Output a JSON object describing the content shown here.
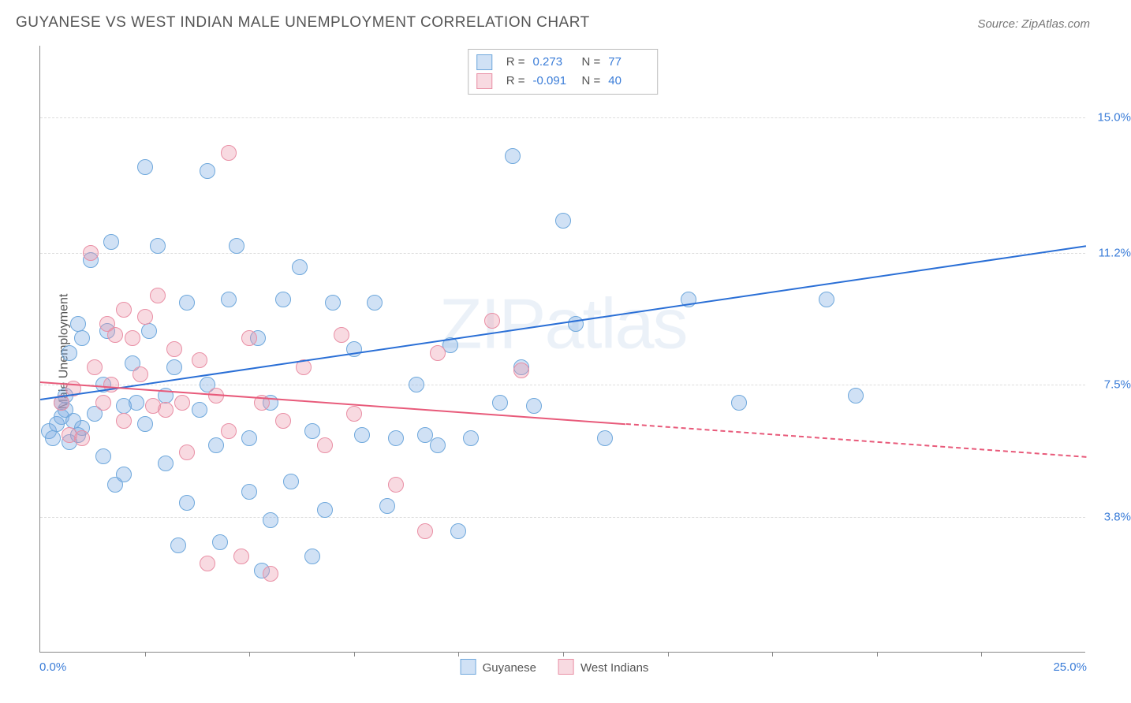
{
  "title": "GUYANESE VS WEST INDIAN MALE UNEMPLOYMENT CORRELATION CHART",
  "source": "Source: ZipAtlas.com",
  "ylabel": "Male Unemployment",
  "watermark_a": "ZIP",
  "watermark_b": "atlas",
  "chart": {
    "type": "scatter-with-regression",
    "background_color": "#ffffff",
    "grid_color": "#dddddd",
    "axis_color": "#888888",
    "xlim": [
      0,
      25
    ],
    "ylim": [
      0,
      17
    ],
    "x_min_label": "0.0%",
    "x_max_label": "25.0%",
    "x_ticks_pct": [
      10,
      20,
      30,
      40,
      50,
      60,
      70,
      80,
      90
    ],
    "y_gridlines": [
      {
        "val": 3.8,
        "label": "3.8%"
      },
      {
        "val": 7.5,
        "label": "7.5%"
      },
      {
        "val": 11.2,
        "label": "11.2%"
      },
      {
        "val": 15.0,
        "label": "15.0%"
      }
    ],
    "label_color": "#3b7dd8",
    "label_fontsize": 15,
    "title_fontsize": 19,
    "marker_radius": 10,
    "marker_border_width": 1.5,
    "series": [
      {
        "name": "Guyanese",
        "fill": "rgba(120, 170, 225, 0.35)",
        "stroke": "#6fa8dc",
        "line_color": "#2a6fd6",
        "R_label": "R =",
        "R": "0.273",
        "N_label": "N =",
        "N": "77",
        "reg_x1": 0,
        "reg_y1": 7.1,
        "reg_x2": 25,
        "reg_y2": 11.4,
        "reg_dashed_from_x": null,
        "points": [
          [
            0.2,
            6.2
          ],
          [
            0.3,
            6.0
          ],
          [
            0.4,
            6.4
          ],
          [
            0.5,
            7.0
          ],
          [
            0.5,
            6.6
          ],
          [
            0.6,
            6.8
          ],
          [
            0.6,
            7.2
          ],
          [
            0.7,
            5.9
          ],
          [
            0.7,
            8.4
          ],
          [
            0.8,
            6.5
          ],
          [
            0.9,
            6.1
          ],
          [
            0.9,
            9.2
          ],
          [
            1.0,
            6.3
          ],
          [
            1.0,
            8.8
          ],
          [
            1.2,
            11.0
          ],
          [
            1.3,
            6.7
          ],
          [
            1.5,
            5.5
          ],
          [
            1.5,
            7.5
          ],
          [
            1.6,
            9.0
          ],
          [
            1.7,
            11.5
          ],
          [
            2.0,
            5.0
          ],
          [
            2.0,
            6.9
          ],
          [
            2.2,
            8.1
          ],
          [
            2.3,
            7.0
          ],
          [
            2.5,
            6.4
          ],
          [
            2.5,
            13.6
          ],
          [
            2.6,
            9.0
          ],
          [
            2.8,
            11.4
          ],
          [
            3.0,
            7.2
          ],
          [
            3.0,
            5.3
          ],
          [
            3.2,
            8.0
          ],
          [
            3.5,
            4.2
          ],
          [
            3.5,
            9.8
          ],
          [
            3.8,
            6.8
          ],
          [
            4.0,
            7.5
          ],
          [
            4.0,
            13.5
          ],
          [
            4.2,
            5.8
          ],
          [
            4.5,
            9.9
          ],
          [
            4.7,
            11.4
          ],
          [
            5.0,
            4.5
          ],
          [
            5.0,
            6.0
          ],
          [
            5.2,
            8.8
          ],
          [
            5.5,
            7.0
          ],
          [
            5.5,
            3.7
          ],
          [
            5.8,
            9.9
          ],
          [
            6.0,
            4.8
          ],
          [
            6.2,
            10.8
          ],
          [
            6.5,
            6.2
          ],
          [
            6.5,
            2.7
          ],
          [
            6.8,
            4.0
          ],
          [
            7.0,
            9.8
          ],
          [
            7.5,
            8.5
          ],
          [
            7.7,
            6.1
          ],
          [
            8.0,
            9.8
          ],
          [
            8.3,
            4.1
          ],
          [
            8.5,
            6.0
          ],
          [
            9.0,
            7.5
          ],
          [
            9.2,
            6.1
          ],
          [
            9.5,
            5.8
          ],
          [
            9.8,
            8.6
          ],
          [
            10.0,
            3.4
          ],
          [
            10.3,
            6.0
          ],
          [
            11.0,
            7.0
          ],
          [
            11.3,
            13.9
          ],
          [
            11.5,
            8.0
          ],
          [
            11.8,
            6.9
          ],
          [
            12.5,
            12.1
          ],
          [
            12.8,
            9.2
          ],
          [
            13.5,
            6.0
          ],
          [
            15.5,
            9.9
          ],
          [
            16.7,
            7.0
          ],
          [
            18.8,
            9.9
          ],
          [
            19.5,
            7.2
          ],
          [
            3.3,
            3.0
          ],
          [
            4.3,
            3.1
          ],
          [
            5.3,
            2.3
          ],
          [
            1.8,
            4.7
          ]
        ]
      },
      {
        "name": "West Indians",
        "fill": "rgba(235, 150, 170, 0.35)",
        "stroke": "#e98fa5",
        "line_color": "#e85a7a",
        "R_label": "R =",
        "R": "-0.091",
        "N_label": "N =",
        "N": "40",
        "reg_x1": 0,
        "reg_y1": 7.6,
        "reg_x2": 25,
        "reg_y2": 5.5,
        "reg_dashed_from_x": 14,
        "points": [
          [
            0.5,
            7.0
          ],
          [
            0.7,
            6.1
          ],
          [
            0.8,
            7.4
          ],
          [
            1.0,
            6.0
          ],
          [
            1.2,
            11.2
          ],
          [
            1.3,
            8.0
          ],
          [
            1.5,
            7.0
          ],
          [
            1.6,
            9.2
          ],
          [
            1.7,
            7.5
          ],
          [
            1.8,
            8.9
          ],
          [
            2.0,
            6.5
          ],
          [
            2.0,
            9.6
          ],
          [
            2.2,
            8.8
          ],
          [
            2.4,
            7.8
          ],
          [
            2.5,
            9.4
          ],
          [
            2.7,
            6.9
          ],
          [
            2.8,
            10.0
          ],
          [
            3.0,
            6.8
          ],
          [
            3.2,
            8.5
          ],
          [
            3.4,
            7.0
          ],
          [
            3.5,
            5.6
          ],
          [
            3.8,
            8.2
          ],
          [
            4.0,
            2.5
          ],
          [
            4.2,
            7.2
          ],
          [
            4.5,
            6.2
          ],
          [
            4.5,
            14.0
          ],
          [
            4.8,
            2.7
          ],
          [
            5.0,
            8.8
          ],
          [
            5.3,
            7.0
          ],
          [
            5.5,
            2.2
          ],
          [
            5.8,
            6.5
          ],
          [
            6.3,
            8.0
          ],
          [
            6.8,
            5.8
          ],
          [
            7.2,
            8.9
          ],
          [
            7.5,
            6.7
          ],
          [
            8.5,
            4.7
          ],
          [
            9.2,
            3.4
          ],
          [
            9.5,
            8.4
          ],
          [
            10.8,
            9.3
          ],
          [
            11.5,
            7.9
          ]
        ]
      }
    ]
  }
}
